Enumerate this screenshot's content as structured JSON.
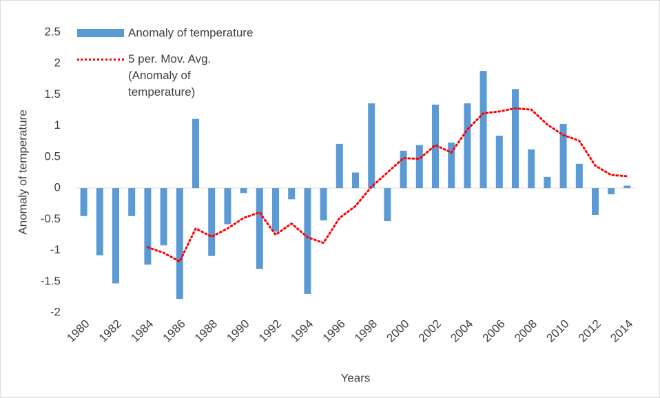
{
  "chart_data": {
    "type": "bar",
    "x_label": "Years",
    "y_label": "Anomaly of temperature",
    "categories": [
      "1980",
      null,
      "1982",
      null,
      "1984",
      null,
      "1986",
      null,
      "1988",
      null,
      "1990",
      null,
      "1992",
      null,
      "1994",
      null,
      "1996",
      null,
      "1998",
      null,
      "2000",
      null,
      "2002",
      null,
      "2004",
      null,
      "2006",
      null,
      "2008",
      null,
      "2010",
      null,
      "2012",
      null,
      "2014"
    ],
    "series": [
      {
        "name": "Anomaly of temperature",
        "type": "bar",
        "color": "#5b9bd5",
        "values": [
          -0.45,
          -1.08,
          -1.53,
          -0.45,
          -1.23,
          -0.92,
          -1.78,
          1.11,
          -1.09,
          -0.58,
          -0.08,
          -1.3,
          -0.7,
          -0.18,
          -1.7,
          -0.52,
          0.71,
          0.25,
          1.36,
          -0.53,
          0.6,
          0.69,
          1.34,
          0.73,
          1.36,
          1.88,
          0.84,
          1.59,
          0.62,
          0.18,
          1.03,
          0.39,
          -0.43,
          -0.1,
          0.04
        ]
      },
      {
        "name": "5 per. Mov. Avg. (Anomaly of temperature)",
        "type": "line",
        "color": "#ff0000",
        "values": [
          null,
          null,
          null,
          null,
          -0.95,
          -1.04,
          -1.18,
          -0.65,
          -0.78,
          -0.65,
          -0.48,
          -0.39,
          -0.75,
          -0.57,
          -0.79,
          -0.88,
          -0.48,
          -0.29,
          0.02,
          0.25,
          0.48,
          0.47,
          0.69,
          0.57,
          0.94,
          1.2,
          1.23,
          1.28,
          1.26,
          1.02,
          0.85,
          0.76,
          0.36,
          0.21,
          0.19
        ]
      }
    ],
    "ylim": [
      -2,
      2.5
    ],
    "yticks": [
      -2,
      -1.5,
      -1,
      -0.5,
      0,
      0.5,
      1,
      1.5,
      2,
      2.5
    ],
    "grid": false,
    "legend": "upper left"
  }
}
